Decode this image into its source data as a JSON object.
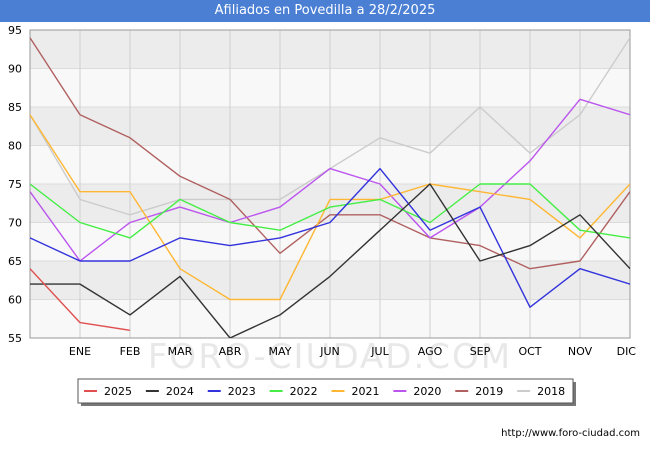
{
  "title": "Afiliados en Povedilla a 28/2/2025",
  "watermark": "FORO-CIUDAD.COM",
  "footer_url": "http://www.foro-ciudad.com",
  "chart_data": {
    "type": "line",
    "title": "Afiliados en Povedilla a 28/2/2025",
    "xlabel": "",
    "ylabel": "",
    "categories": [
      "",
      "ENE",
      "FEB",
      "MAR",
      "ABR",
      "MAY",
      "JUN",
      "JUL",
      "AGO",
      "SEP",
      "OCT",
      "NOV",
      "DIC"
    ],
    "ylim": [
      55,
      95
    ],
    "yticks": [
      55,
      60,
      65,
      70,
      75,
      80,
      85,
      90,
      95
    ],
    "grid": true,
    "legend_position": "bottom",
    "series": [
      {
        "name": "2025",
        "color": "#e05050",
        "values": [
          64,
          57,
          56,
          null,
          null,
          null,
          null,
          null,
          null,
          null,
          null,
          null,
          null
        ]
      },
      {
        "name": "2024",
        "color": "#333333",
        "values": [
          62,
          62,
          58,
          63,
          55,
          58,
          63,
          69,
          75,
          65,
          67,
          71,
          64
        ]
      },
      {
        "name": "2023",
        "color": "#3333dd",
        "values": [
          68,
          65,
          65,
          68,
          67,
          68,
          70,
          77,
          69,
          72,
          59,
          64,
          62
        ]
      },
      {
        "name": "2022",
        "color": "#44ee44",
        "values": [
          75,
          70,
          68,
          73,
          70,
          69,
          72,
          73,
          70,
          75,
          75,
          69,
          68
        ]
      },
      {
        "name": "2021",
        "color": "#ffb733",
        "values": [
          84,
          74,
          74,
          64,
          60,
          60,
          73,
          73,
          75,
          74,
          73,
          68,
          75
        ]
      },
      {
        "name": "2020",
        "color": "#bb55ee",
        "values": [
          74,
          65,
          70,
          72,
          70,
          72,
          77,
          75,
          68,
          72,
          78,
          86,
          84
        ]
      },
      {
        "name": "2019",
        "color": "#b06060",
        "values": [
          94,
          84,
          81,
          76,
          73,
          66,
          71,
          71,
          68,
          67,
          64,
          65,
          74
        ]
      },
      {
        "name": "2018",
        "color": "#cccccc",
        "values": [
          84,
          73,
          71,
          73,
          73,
          73,
          77,
          81,
          79,
          85,
          79,
          84,
          94
        ]
      }
    ]
  }
}
